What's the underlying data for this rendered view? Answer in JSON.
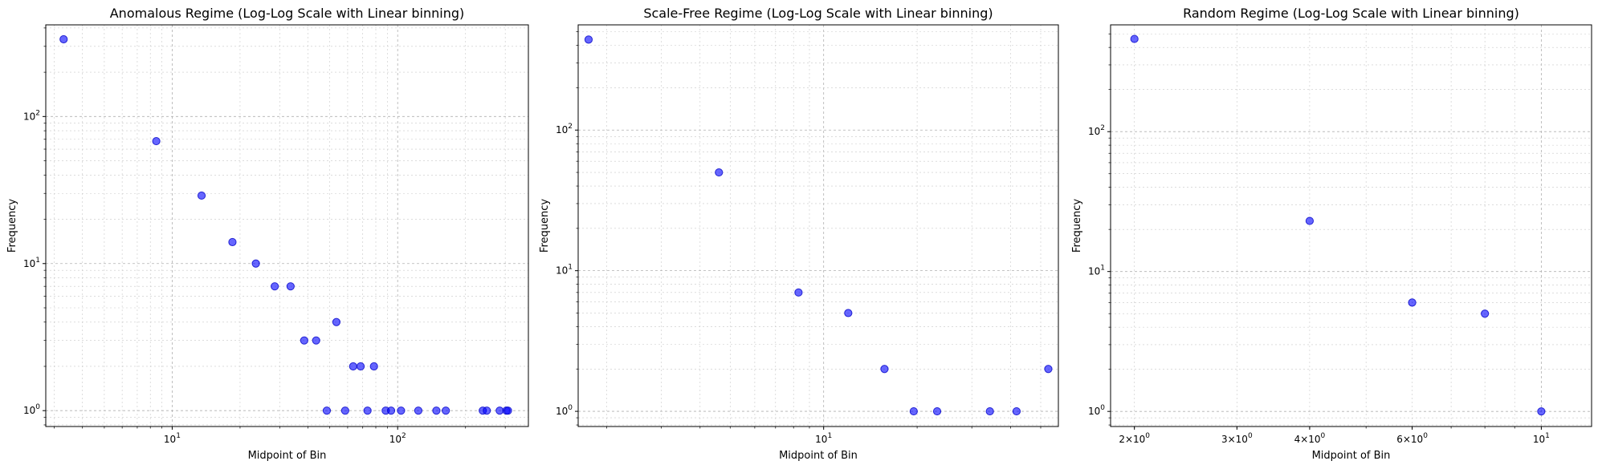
{
  "chart_data": [
    {
      "type": "scatter",
      "title": "Anomalous Regime (Log-Log Scale with Linear binning)",
      "xlabel": "Midpoint of Bin",
      "ylabel": "Frequency",
      "xscale": "log",
      "yscale": "log",
      "xlim": [
        2.75,
        380
      ],
      "ylim": [
        0.78,
        420
      ],
      "grid": true,
      "x_ticks": [
        {
          "value": 10,
          "label": "10^1"
        },
        {
          "value": 100,
          "label": "10^2"
        }
      ],
      "y_ticks": [
        {
          "value": 1,
          "label": "10^0"
        },
        {
          "value": 10,
          "label": "10^1"
        },
        {
          "value": 100,
          "label": "10^2"
        }
      ],
      "points": [
        {
          "x": 3.3,
          "y": 335
        },
        {
          "x": 8.5,
          "y": 68
        },
        {
          "x": 13.5,
          "y": 29
        },
        {
          "x": 18.5,
          "y": 14
        },
        {
          "x": 23.5,
          "y": 10
        },
        {
          "x": 28.5,
          "y": 7
        },
        {
          "x": 33.5,
          "y": 7
        },
        {
          "x": 38.5,
          "y": 3
        },
        {
          "x": 43.5,
          "y": 3
        },
        {
          "x": 48.5,
          "y": 1
        },
        {
          "x": 53.5,
          "y": 4
        },
        {
          "x": 58.5,
          "y": 1
        },
        {
          "x": 63.5,
          "y": 2
        },
        {
          "x": 68.5,
          "y": 2
        },
        {
          "x": 73.5,
          "y": 1
        },
        {
          "x": 78.5,
          "y": 2
        },
        {
          "x": 88.5,
          "y": 1
        },
        {
          "x": 93.5,
          "y": 1
        },
        {
          "x": 103.5,
          "y": 1
        },
        {
          "x": 123.5,
          "y": 1
        },
        {
          "x": 148.5,
          "y": 1
        },
        {
          "x": 163.5,
          "y": 1
        },
        {
          "x": 238.5,
          "y": 1
        },
        {
          "x": 248.5,
          "y": 1
        },
        {
          "x": 283.5,
          "y": 1
        },
        {
          "x": 303.5,
          "y": 1
        },
        {
          "x": 308.5,
          "y": 1
        }
      ]
    },
    {
      "type": "scatter",
      "title": "Scale-Free Regime (Log-Log Scale with Linear binning)",
      "xlabel": "Midpoint of Bin",
      "ylabel": "Frequency",
      "xscale": "log",
      "yscale": "log",
      "xlim": [
        1.62,
        57
      ],
      "ylim": [
        0.78,
        560
      ],
      "grid": true,
      "x_ticks": [
        {
          "value": 10,
          "label": "10^1"
        }
      ],
      "y_ticks": [
        {
          "value": 1,
          "label": "10^0"
        },
        {
          "value": 10,
          "label": "10^1"
        },
        {
          "value": 100,
          "label": "10^2"
        }
      ],
      "points": [
        {
          "x": 1.75,
          "y": 440
        },
        {
          "x": 4.6,
          "y": 50
        },
        {
          "x": 8.3,
          "y": 7
        },
        {
          "x": 12.0,
          "y": 5
        },
        {
          "x": 15.7,
          "y": 2
        },
        {
          "x": 19.5,
          "y": 1
        },
        {
          "x": 23.2,
          "y": 1
        },
        {
          "x": 34.3,
          "y": 1
        },
        {
          "x": 41.8,
          "y": 1
        },
        {
          "x": 52.9,
          "y": 2
        }
      ]
    },
    {
      "type": "scatter",
      "title": "Random Regime (Log-Log Scale with Linear binning)",
      "xlabel": "Midpoint of Bin",
      "ylabel": "Frequency",
      "xscale": "log",
      "yscale": "log",
      "xlim": [
        1.82,
        12.2
      ],
      "ylim": [
        0.78,
        580
      ],
      "grid": true,
      "x_ticks": [
        {
          "value": 2,
          "label": "2×10^0"
        },
        {
          "value": 3,
          "label": "3×10^0"
        },
        {
          "value": 4,
          "label": "4×10^0"
        },
        {
          "value": 6,
          "label": "6×10^0"
        },
        {
          "value": 10,
          "label": "10^1"
        }
      ],
      "y_ticks": [
        {
          "value": 1,
          "label": "10^0"
        },
        {
          "value": 10,
          "label": "10^1"
        },
        {
          "value": 100,
          "label": "10^2"
        }
      ],
      "points": [
        {
          "x": 2.0,
          "y": 460
        },
        {
          "x": 4.0,
          "y": 23
        },
        {
          "x": 6.0,
          "y": 6
        },
        {
          "x": 8.0,
          "y": 5
        },
        {
          "x": 10.0,
          "y": 1
        }
      ]
    }
  ]
}
